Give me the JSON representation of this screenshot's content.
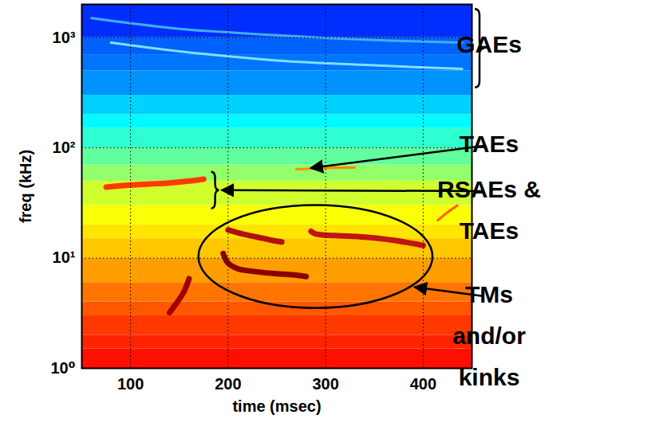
{
  "chart_data": {
    "type": "spectrogram",
    "xlabel": "time (msec)",
    "ylabel": "freq (kHz)",
    "xlim": [
      50,
      450
    ],
    "xticks": [
      100,
      200,
      300,
      400
    ],
    "ylim": [
      1,
      2000
    ],
    "yticks": [
      {
        "value": 1,
        "label": "10⁰"
      },
      {
        "value": 10,
        "label": "10¹"
      },
      {
        "value": 100,
        "label": "10²"
      },
      {
        "value": 1000,
        "label": "10³"
      }
    ],
    "log": "y",
    "grid": true,
    "cells": {
      "freq_edges": [
        1,
        1.5,
        2,
        3,
        4,
        6,
        10,
        15,
        20,
        30,
        50,
        70,
        100,
        150,
        200,
        300,
        500,
        700,
        1000,
        2000
      ],
      "levels": [
        0.86,
        0.84,
        0.82,
        0.79,
        0.76,
        0.72,
        0.68,
        0.65,
        0.62,
        0.58,
        0.52,
        0.47,
        0.42,
        0.37,
        0.33,
        0.27,
        0.24,
        0.22,
        0.17
      ],
      "clim": [
        0,
        1
      ]
    },
    "series": [
      {
        "color": "#ff3a00",
        "line_style": "thick",
        "x": [
          75,
          100,
          120,
          140,
          160,
          175
        ],
        "values": [
          44,
          46,
          47,
          48,
          50,
          52
        ]
      },
      {
        "color": "#a00000",
        "line_style": "thick",
        "x": [
          140,
          148,
          155,
          160
        ],
        "values": [
          3.2,
          4,
          5,
          6.5
        ]
      },
      {
        "color": "#8b0000",
        "line_style": "thick",
        "x": [
          195,
          200,
          210,
          230,
          250,
          270,
          280
        ],
        "values": [
          11,
          9,
          8,
          7.5,
          7.2,
          7,
          6.8
        ]
      },
      {
        "color": "#b01010",
        "line_style": "thick",
        "x": [
          200,
          215,
          230,
          245,
          255
        ],
        "values": [
          18,
          16.5,
          15.5,
          14.5,
          14
        ]
      },
      {
        "color": "#c01515",
        "line_style": "thick",
        "x": [
          285,
          290,
          310,
          340,
          370,
          400
        ],
        "values": [
          17.5,
          16.5,
          16,
          15.5,
          14.5,
          13
        ]
      },
      {
        "color": "#ff8c00",
        "line_style": "thin",
        "x": [
          270,
          290,
          310,
          330
        ],
        "values": [
          64,
          65,
          66,
          66
        ]
      },
      {
        "color": "#80e0ff",
        "line_style": "thin",
        "x": [
          80,
          150,
          250,
          350,
          440
        ],
        "values": [
          900,
          750,
          620,
          560,
          520
        ]
      },
      {
        "color": "#40b0f0",
        "line_style": "thin",
        "x": [
          60,
          150,
          250,
          350,
          440
        ],
        "values": [
          1500,
          1200,
          1050,
          950,
          900
        ]
      },
      {
        "color": "#ff6000",
        "line_style": "thin",
        "x": [
          415,
          425,
          435
        ],
        "values": [
          22,
          26,
          30
        ]
      }
    ],
    "annotations": [
      {
        "text": "GAEs",
        "marker": "bracket",
        "y": [
          350,
          1800
        ]
      },
      {
        "text": "TAEs",
        "marker": "arrow",
        "x": 285,
        "y": 65
      },
      {
        "text": "RSAEs & TAEs",
        "marker": "bracket",
        "x": 183,
        "y": [
          28,
          60
        ]
      },
      {
        "text": "TMs and/or kinks",
        "marker": "ellipse",
        "x": [
          170,
          410
        ],
        "y": [
          3.5,
          30
        ]
      }
    ]
  }
}
